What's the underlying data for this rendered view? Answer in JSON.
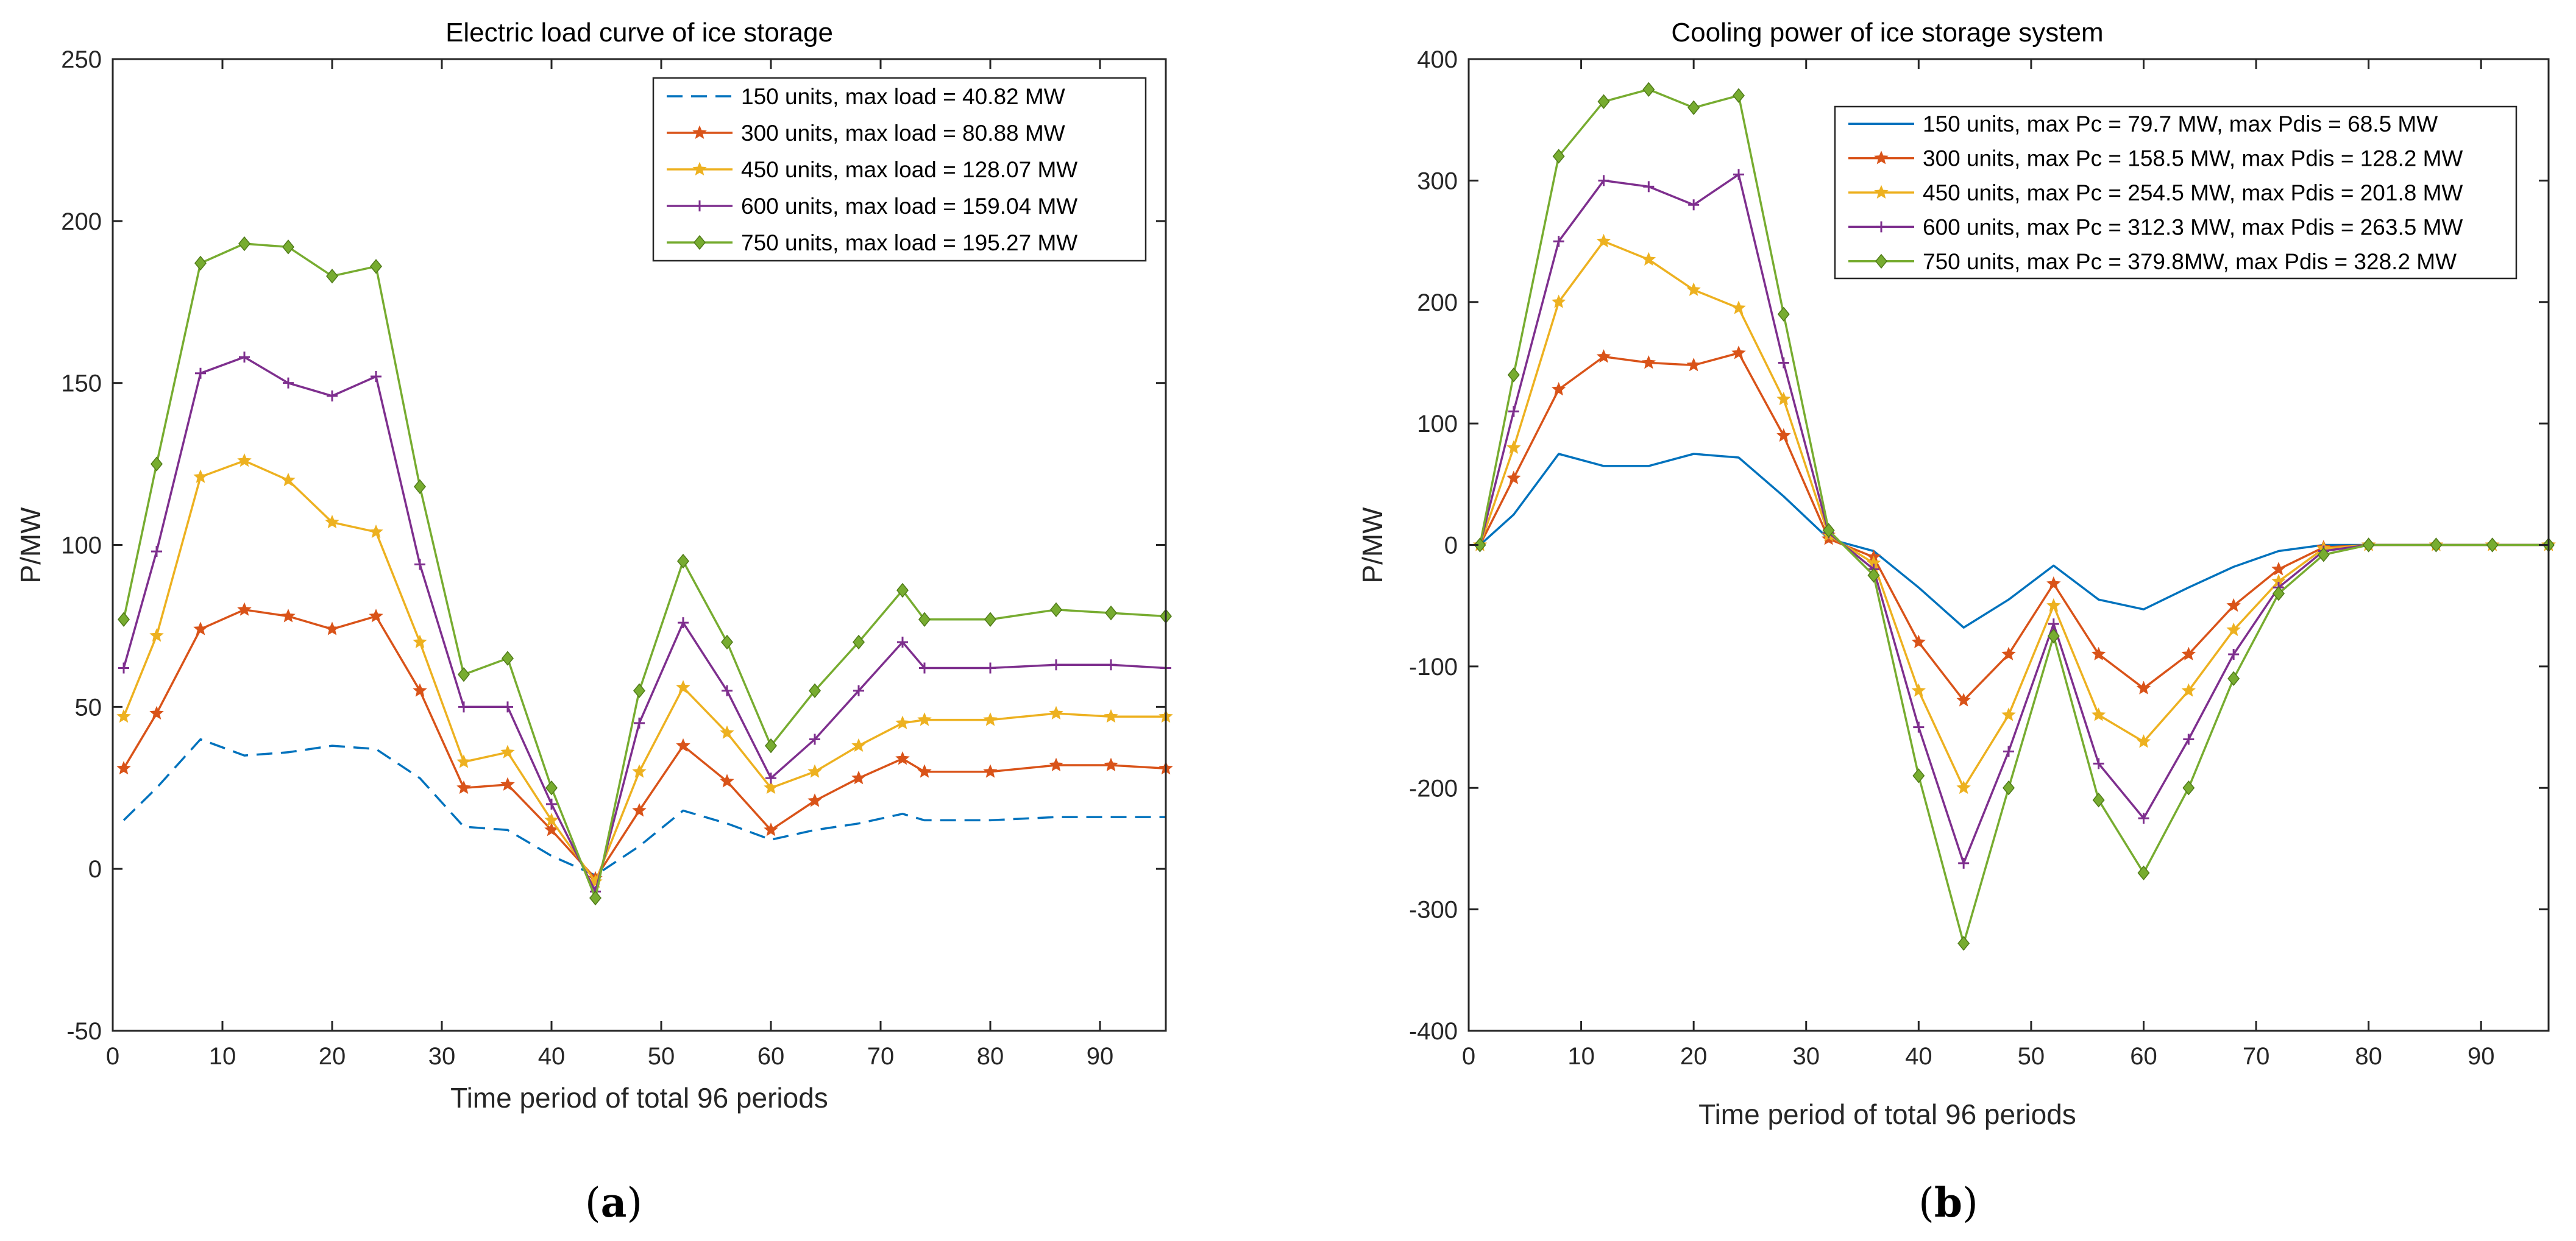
{
  "figure": {
    "caption_a": "(a)",
    "caption_b": "(b)",
    "caption_open": "(",
    "caption_close": ")",
    "label_a": "a",
    "label_b": "b"
  },
  "chart_data": [
    {
      "type": "line",
      "title": "Electric load curve of ice storage",
      "xlabel": "Time period of total 96 periods",
      "ylabel": "P/MW",
      "xlim": [
        0,
        96
      ],
      "ylim": [
        -50,
        250
      ],
      "xticks": [
        0,
        10,
        20,
        30,
        40,
        50,
        60,
        70,
        80,
        90
      ],
      "yticks": [
        -50,
        0,
        50,
        100,
        150,
        200,
        250
      ],
      "legend_position": "top-right",
      "x": [
        1,
        4,
        8,
        12,
        16,
        20,
        24,
        28,
        32,
        36,
        40,
        44,
        48,
        52,
        56,
        60,
        64,
        68,
        72,
        74,
        80,
        86,
        91,
        96
      ],
      "series": [
        {
          "name": "150 units, max load = 40.82 MW",
          "color": "#0072BD",
          "marker": "none",
          "dash": true,
          "values": [
            15,
            25,
            40,
            35,
            36,
            38,
            37,
            28,
            13,
            12,
            4,
            -2,
            7,
            18,
            14,
            9,
            12,
            14,
            17,
            15,
            15,
            16,
            16,
            16
          ]
        },
        {
          "name": "300 units, max load = 80.88 MW",
          "color": "#D95319",
          "marker": "star",
          "dash": false,
          "values": [
            31,
            48,
            74,
            80,
            78,
            74,
            78,
            55,
            25,
            26,
            12,
            -3,
            18,
            38,
            27,
            12,
            21,
            28,
            34,
            30,
            30,
            32,
            32,
            31
          ]
        },
        {
          "name": "450 units, max load = 128.07 MW",
          "color": "#EDB120",
          "marker": "hexagram",
          "dash": false,
          "values": [
            47,
            72,
            121,
            126,
            120,
            107,
            104,
            70,
            33,
            36,
            15,
            -4,
            30,
            56,
            42,
            25,
            30,
            38,
            45,
            46,
            46,
            48,
            47,
            47
          ]
        },
        {
          "name": "600 units, max load = 159.04 MW",
          "color": "#7E2F8E",
          "marker": "plus",
          "dash": false,
          "values": [
            62,
            98,
            153,
            158,
            150,
            146,
            152,
            94,
            50,
            50,
            20,
            -7,
            45,
            76,
            55,
            28,
            40,
            55,
            70,
            62,
            62,
            63,
            63,
            62
          ]
        },
        {
          "name": "750 units, max load = 195.27 MW",
          "color": "#77AC30",
          "marker": "diamond",
          "dash": false,
          "values": [
            77,
            125,
            187,
            193,
            192,
            183,
            186,
            118,
            60,
            65,
            25,
            -9,
            55,
            95,
            70,
            38,
            55,
            70,
            86,
            77,
            77,
            80,
            79,
            78
          ]
        }
      ]
    },
    {
      "type": "line",
      "title": "Cooling power of ice storage system",
      "xlabel": "Time period of total 96 periods",
      "ylabel": "P/MW",
      "xlim": [
        0,
        96
      ],
      "ylim": [
        -400,
        400
      ],
      "xticks": [
        0,
        10,
        20,
        30,
        40,
        50,
        60,
        70,
        80,
        90
      ],
      "yticks": [
        -400,
        -300,
        -200,
        -100,
        0,
        100,
        200,
        300,
        400
      ],
      "legend_position": "top-right",
      "x": [
        1,
        4,
        8,
        12,
        16,
        20,
        24,
        28,
        32,
        36,
        40,
        44,
        48,
        52,
        56,
        60,
        64,
        68,
        72,
        76,
        80,
        86,
        91,
        96
      ],
      "series": [
        {
          "name": "150 units, max Pc = 79.7 MW, max Pdis = 68.5 MW",
          "color": "#0072BD",
          "marker": "none",
          "dash": false,
          "values": [
            0,
            25,
            75,
            65,
            65,
            75,
            72,
            40,
            5,
            -5,
            -35,
            -68,
            -45,
            -17,
            -45,
            -53,
            -35,
            -18,
            -5,
            0,
            0,
            0,
            0,
            0
          ]
        },
        {
          "name": "300 units, max Pc = 158.5 MW, max Pdis = 128.2 MW",
          "color": "#D95319",
          "marker": "star",
          "dash": false,
          "values": [
            0,
            55,
            128,
            155,
            150,
            148,
            158,
            90,
            5,
            -10,
            -80,
            -128,
            -90,
            -32,
            -90,
            -118,
            -90,
            -50,
            -20,
            -2,
            0,
            0,
            0,
            0
          ]
        },
        {
          "name": "450 units, max Pc = 254.5 MW, max Pdis = 201.8 MW",
          "color": "#EDB120",
          "marker": "hexagram",
          "dash": false,
          "values": [
            0,
            80,
            200,
            250,
            235,
            210,
            195,
            120,
            8,
            -15,
            -120,
            -200,
            -140,
            -50,
            -140,
            -162,
            -120,
            -70,
            -30,
            -3,
            0,
            0,
            0,
            0
          ]
        },
        {
          "name": "600 units, max Pc = 312.3 MW, max Pdis = 263.5 MW",
          "color": "#7E2F8E",
          "marker": "plus",
          "dash": false,
          "values": [
            0,
            110,
            250,
            300,
            295,
            280,
            305,
            150,
            10,
            -20,
            -150,
            -262,
            -170,
            -65,
            -180,
            -225,
            -160,
            -90,
            -35,
            -5,
            0,
            0,
            0,
            0
          ]
        },
        {
          "name": "750 units, max Pc = 379.8MW, max Pdis = 328.2 MW",
          "color": "#77AC30",
          "marker": "diamond",
          "dash": false,
          "values": [
            0,
            140,
            320,
            365,
            375,
            360,
            370,
            190,
            12,
            -25,
            -190,
            -328,
            -200,
            -75,
            -210,
            -270,
            -200,
            -110,
            -40,
            -8,
            0,
            0,
            0,
            0
          ]
        }
      ]
    }
  ]
}
